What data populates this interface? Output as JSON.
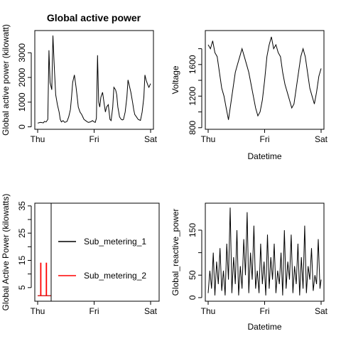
{
  "chart_data": [
    {
      "type": "line",
      "title": "Global active power",
      "xlabel": "",
      "ylabel": "Global active power (kilowatt)",
      "x_ticks": [
        "Thu",
        "Fri",
        "Sat"
      ],
      "y_ticks": [
        "0",
        "1000",
        "2000",
        "3000"
      ],
      "ylim": [
        -100,
        3900
      ],
      "series": [
        {
          "x": [
            0,
            0.05,
            0.1,
            0.12,
            0.15,
            0.18,
            0.2,
            0.22,
            0.25,
            0.27,
            0.3,
            0.32,
            0.35,
            0.38,
            0.4,
            0.42,
            0.45,
            0.48,
            0.5,
            0.52,
            0.55,
            0.58,
            0.6,
            0.62,
            0.65,
            0.68,
            0.7,
            0.72,
            0.75,
            0.78,
            0.8,
            0.82,
            0.85,
            0.88,
            0.9,
            0.93,
            0.95,
            0.97,
            1.0,
            1.02,
            1.04,
            1.06,
            1.08,
            1.1,
            1.12,
            1.15,
            1.18,
            1.2,
            1.22,
            1.25,
            1.28,
            1.3,
            1.33,
            1.35,
            1.38,
            1.4,
            1.42,
            1.45,
            1.48,
            1.5,
            1.52,
            1.55,
            1.58,
            1.6,
            1.62,
            1.65,
            1.68,
            1.7,
            1.72,
            1.75,
            1.78,
            1.8,
            1.82,
            1.85,
            1.88,
            1.9,
            1.92,
            1.95,
            1.97,
            2.0
          ],
          "y": [
            150,
            180,
            160,
            220,
            200,
            300,
            3100,
            1800,
            1500,
            3700,
            2200,
            1300,
            900,
            600,
            300,
            200,
            250,
            180,
            200,
            220,
            400,
            700,
            1200,
            1800,
            2100,
            1600,
            1200,
            800,
            600,
            500,
            400,
            300,
            250,
            200,
            180,
            200,
            220,
            250,
            200,
            180,
            350,
            2900,
            1000,
            800,
            1200,
            1400,
            900,
            600,
            800,
            900,
            300,
            250,
            800,
            1600,
            1500,
            1300,
            800,
            400,
            300,
            280,
            300,
            600,
            1200,
            1900,
            1700,
            1400,
            1000,
            700,
            500,
            400,
            300,
            280,
            260,
            600,
            1200,
            2100,
            1900,
            1700,
            1600,
            1750
          ]
        }
      ]
    },
    {
      "type": "line",
      "title": "",
      "xlabel": "Datetime",
      "ylabel": "Voltage",
      "x_ticks": [
        "Thu",
        "Fri",
        "Sat"
      ],
      "y_ticks": [
        "800",
        "1200",
        "1600"
      ],
      "y_tick_marks": [
        800,
        1000,
        1200,
        1400,
        1600,
        1800
      ],
      "ylim": [
        780,
        2030
      ],
      "series": [
        {
          "x": [
            0,
            0.04,
            0.08,
            0.12,
            0.16,
            0.2,
            0.24,
            0.28,
            0.32,
            0.36,
            0.4,
            0.44,
            0.48,
            0.52,
            0.56,
            0.6,
            0.64,
            0.68,
            0.72,
            0.76,
            0.8,
            0.84,
            0.88,
            0.92,
            0.96,
            1.0,
            1.04,
            1.08,
            1.12,
            1.16,
            1.2,
            1.24,
            1.28,
            1.32,
            1.36,
            1.4,
            1.44,
            1.48,
            1.52,
            1.56,
            1.6,
            1.64,
            1.68,
            1.72,
            1.76,
            1.8,
            1.84,
            1.88,
            1.92,
            1.96,
            2.0
          ],
          "y": [
            1850,
            1800,
            1900,
            1750,
            1700,
            1500,
            1300,
            1200,
            1050,
            900,
            1100,
            1300,
            1500,
            1600,
            1700,
            1800,
            1700,
            1600,
            1500,
            1350,
            1200,
            1050,
            950,
            1000,
            1150,
            1400,
            1700,
            1850,
            1950,
            1800,
            1850,
            1750,
            1700,
            1500,
            1350,
            1250,
            1150,
            1050,
            1100,
            1300,
            1500,
            1700,
            1800,
            1700,
            1500,
            1300,
            1200,
            1100,
            1250,
            1450,
            1550
          ]
        }
      ]
    },
    {
      "type": "line",
      "title": "",
      "xlabel": "",
      "ylabel": "Global Active Power (kilowatts)",
      "x_ticks": [
        "Thu",
        "Fri",
        "Sat"
      ],
      "y_ticks": [
        "5",
        "15",
        "25",
        "35"
      ],
      "y_tick_marks": [
        5,
        10,
        15,
        20,
        25,
        30,
        35
      ],
      "ylim": [
        0,
        36
      ],
      "legend": [
        "Sub_metering_1",
        "Sub_metering_2"
      ],
      "colors": {
        "Sub_metering_1": "#000000",
        "Sub_metering_2": "#ff0000"
      },
      "series": [
        {
          "name": "Sub_metering_1",
          "x": [
            0.0,
            0.1,
            0.2,
            0.25
          ],
          "y": [
            2,
            2,
            2,
            2
          ]
        },
        {
          "name": "Sub_metering_2",
          "x": [
            0.0,
            0.05,
            0.05,
            0.06,
            0.06,
            0.15,
            0.15,
            0.16,
            0.16,
            0.25
          ],
          "y": [
            2,
            2,
            14,
            14,
            2,
            2,
            14,
            14,
            2,
            2
          ]
        }
      ]
    },
    {
      "type": "line",
      "title": "",
      "xlabel": "Datetime",
      "ylabel": "Global_reactive_power",
      "x_ticks": [
        "Thu",
        "Fri",
        "Sat"
      ],
      "y_ticks": [
        "0",
        "50",
        "150"
      ],
      "y_tick_marks": [
        0,
        50,
        100,
        150
      ],
      "ylim": [
        -8,
        210
      ],
      "series": [
        {
          "x": [
            0,
            0.03,
            0.06,
            0.09,
            0.12,
            0.15,
            0.18,
            0.21,
            0.24,
            0.27,
            0.3,
            0.33,
            0.36,
            0.39,
            0.42,
            0.45,
            0.48,
            0.51,
            0.54,
            0.57,
            0.6,
            0.63,
            0.66,
            0.69,
            0.72,
            0.75,
            0.78,
            0.81,
            0.84,
            0.87,
            0.9,
            0.93,
            0.96,
            0.99,
            1.02,
            1.05,
            1.08,
            1.11,
            1.14,
            1.17,
            1.2,
            1.23,
            1.26,
            1.29,
            1.32,
            1.35,
            1.38,
            1.41,
            1.44,
            1.47,
            1.5,
            1.53,
            1.56,
            1.59,
            1.62,
            1.65,
            1.68,
            1.71,
            1.74,
            1.77,
            1.8,
            1.83,
            1.86,
            1.89,
            1.92,
            1.95,
            1.98,
            2.0
          ],
          "y": [
            10,
            60,
            20,
            100,
            5,
            80,
            30,
            110,
            15,
            60,
            5,
            120,
            40,
            200,
            10,
            90,
            30,
            150,
            5,
            70,
            20,
            130,
            50,
            190,
            10,
            100,
            40,
            160,
            20,
            60,
            10,
            120,
            30,
            80,
            5,
            140,
            20,
            90,
            40,
            120,
            10,
            60,
            30,
            100,
            5,
            150,
            20,
            80,
            40,
            140,
            10,
            70,
            30,
            120,
            5,
            90,
            20,
            160,
            10,
            70,
            40,
            110,
            15,
            50,
            30,
            130,
            20,
            40
          ]
        }
      ]
    }
  ]
}
